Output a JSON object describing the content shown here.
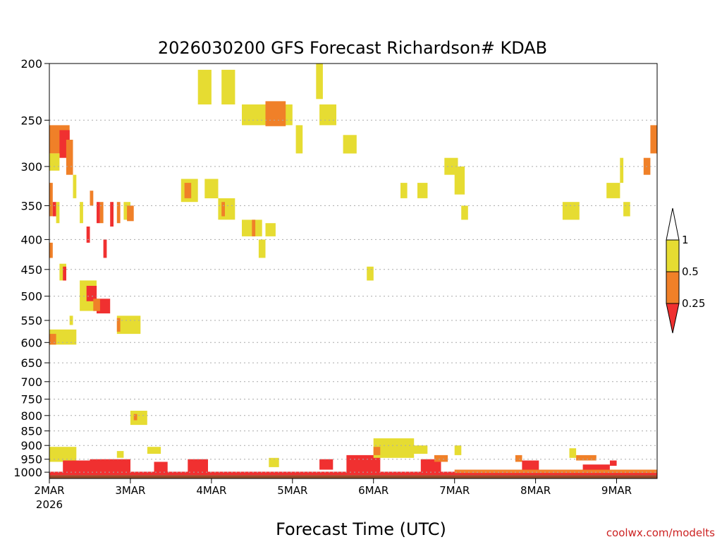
{
  "colors": {
    "band_0_0.25": "#f03030",
    "band_0.25_0.5": "#f08028",
    "band_0.5_1": "#e6dc32",
    "ground": "#9a4a28",
    "grid": "#aaaaaa",
    "axis": "#000000",
    "credit": "#cc2222"
  },
  "credit": "coolwx.com/modelts",
  "chart_data": {
    "type": "heatmap",
    "title": "2026030200 GFS Forecast Richardson# KDAB",
    "xlabel": "Forecast Time (UTC)",
    "ylabel": "",
    "y_scale": "log-pressure",
    "y_inverted": true,
    "ylim": [
      1025,
      200
    ],
    "xlim_days": [
      "2026-03-02T00Z",
      "2026-03-09T12Z"
    ],
    "grid": "dotted horizontal at pressure levels",
    "y_ticks": [
      {
        "value": 200,
        "label": "200"
      },
      {
        "value": 250,
        "label": "250"
      },
      {
        "value": 300,
        "label": "300"
      },
      {
        "value": 350,
        "label": "350"
      },
      {
        "value": 400,
        "label": "400"
      },
      {
        "value": 450,
        "label": "450"
      },
      {
        "value": 500,
        "label": "500"
      },
      {
        "value": 550,
        "label": "550"
      },
      {
        "value": 600,
        "label": "600"
      },
      {
        "value": 650,
        "label": "650"
      },
      {
        "value": 700,
        "label": "700"
      },
      {
        "value": 750,
        "label": "750"
      },
      {
        "value": 800,
        "label": "800"
      },
      {
        "value": 850,
        "label": "850"
      },
      {
        "value": 900,
        "label": "900"
      },
      {
        "value": 950,
        "label": "950"
      },
      {
        "value": 1000,
        "label": "1000"
      }
    ],
    "x_ticks": [
      {
        "value": "2026-03-02",
        "label": "2MAR",
        "sublabel": "2026"
      },
      {
        "value": "2026-03-03",
        "label": "3MAR"
      },
      {
        "value": "2026-03-04",
        "label": "4MAR"
      },
      {
        "value": "2026-03-05",
        "label": "5MAR"
      },
      {
        "value": "2026-03-06",
        "label": "6MAR"
      },
      {
        "value": "2026-03-07",
        "label": "7MAR"
      },
      {
        "value": "2026-03-08",
        "label": "8MAR"
      },
      {
        "value": "2026-03-09",
        "label": "9MAR"
      }
    ],
    "legend": {
      "placement": "right",
      "bands": [
        {
          "range": "< 0.25",
          "color": "#f03030"
        },
        {
          "range": "0.25 - 0.5",
          "color": "#f08028"
        },
        {
          "range": "0.5 - 1",
          "color": "#e6dc32"
        },
        {
          "range": "> 1",
          "color": "#ffffff"
        }
      ],
      "labels": [
        "1",
        "0.5",
        "0.25"
      ]
    },
    "cells": [
      {
        "t0": "2026-03-02T00Z",
        "t1": "2026-03-02T06Z",
        "p0": 255,
        "p1": 285,
        "band": "0.25-0.5"
      },
      {
        "t0": "2026-03-02T03Z",
        "t1": "2026-03-02T06Z",
        "p0": 260,
        "p1": 290,
        "band": "<0.25"
      },
      {
        "t0": "2026-03-02T00Z",
        "t1": "2026-03-02T03Z",
        "p0": 285,
        "p1": 305,
        "band": "0.5-1"
      },
      {
        "t0": "2026-03-02T05Z",
        "t1": "2026-03-02T07Z",
        "p0": 270,
        "p1": 310,
        "band": "0.25-0.5"
      },
      {
        "t0": "2026-03-02T00Z",
        "t1": "2026-03-02T01Z",
        "p0": 320,
        "p1": 365,
        "band": "0.25-0.5"
      },
      {
        "t0": "2026-03-02T01Z",
        "t1": "2026-03-02T02Z",
        "p0": 345,
        "p1": 365,
        "band": "<0.25"
      },
      {
        "t0": "2026-03-02T02Z",
        "t1": "2026-03-02T03Z",
        "p0": 345,
        "p1": 375,
        "band": "0.5-1"
      },
      {
        "t0": "2026-03-02T07Z",
        "t1": "2026-03-02T08Z",
        "p0": 310,
        "p1": 340,
        "band": "0.5-1"
      },
      {
        "t0": "2026-03-02T09Z",
        "t1": "2026-03-02T10Z",
        "p0": 345,
        "p1": 375,
        "band": "0.5-1"
      },
      {
        "t0": "2026-03-02T12Z",
        "t1": "2026-03-02T13Z",
        "p0": 330,
        "p1": 350,
        "band": "0.25-0.5"
      },
      {
        "t0": "2026-03-02T14Z",
        "t1": "2026-03-02T15Z",
        "p0": 345,
        "p1": 375,
        "band": "<0.25"
      },
      {
        "t0": "2026-03-02T15Z",
        "t1": "2026-03-02T16Z",
        "p0": 345,
        "p1": 375,
        "band": "0.25-0.5"
      },
      {
        "t0": "2026-03-02T18Z",
        "t1": "2026-03-02T19Z",
        "p0": 345,
        "p1": 380,
        "band": "<0.25"
      },
      {
        "t0": "2026-03-02T20Z",
        "t1": "2026-03-02T21Z",
        "p0": 345,
        "p1": 375,
        "band": "0.25-0.5"
      },
      {
        "t0": "2026-03-02T22Z",
        "t1": "2026-03-02T24Z",
        "p0": 345,
        "p1": 370,
        "band": "0.5-1"
      },
      {
        "t0": "2026-03-02T23Z",
        "t1": "2026-03-03T01Z",
        "p0": 350,
        "p1": 372,
        "band": "0.25-0.5"
      },
      {
        "t0": "2026-03-02T11Z",
        "t1": "2026-03-02T12Z",
        "p0": 380,
        "p1": 405,
        "band": "<0.25"
      },
      {
        "t0": "2026-03-02T16Z",
        "t1": "2026-03-02T17Z",
        "p0": 400,
        "p1": 430,
        "band": "<0.25"
      },
      {
        "t0": "2026-03-02T00Z",
        "t1": "2026-03-02T01Z",
        "p0": 405,
        "p1": 430,
        "band": "0.25-0.5"
      },
      {
        "t0": "2026-03-02T03Z",
        "t1": "2026-03-02T05Z",
        "p0": 440,
        "p1": 470,
        "band": "0.5-1"
      },
      {
        "t0": "2026-03-02T04Z",
        "t1": "2026-03-02T05Z",
        "p0": 445,
        "p1": 470,
        "band": "<0.25"
      },
      {
        "t0": "2026-03-02T09Z",
        "t1": "2026-03-02T14Z",
        "p0": 470,
        "p1": 530,
        "band": "0.5-1"
      },
      {
        "t0": "2026-03-02T11Z",
        "t1": "2026-03-02T14Z",
        "p0": 480,
        "p1": 510,
        "band": "<0.25"
      },
      {
        "t0": "2026-03-02T14Z",
        "t1": "2026-03-02T18Z",
        "p0": 505,
        "p1": 535,
        "band": "<0.25"
      },
      {
        "t0": "2026-03-02T13Z",
        "t1": "2026-03-02T15Z",
        "p0": 505,
        "p1": 530,
        "band": "0.25-0.5"
      },
      {
        "t0": "2026-03-02T20Z",
        "t1": "2026-03-03T03Z",
        "p0": 540,
        "p1": 580,
        "band": "0.5-1"
      },
      {
        "t0": "2026-03-02T20Z",
        "t1": "2026-03-02T21Z",
        "p0": 545,
        "p1": 575,
        "band": "0.25-0.5"
      },
      {
        "t0": "2026-03-02T00Z",
        "t1": "2026-03-02T08Z",
        "p0": 570,
        "p1": 605,
        "band": "0.5-1"
      },
      {
        "t0": "2026-03-02T00Z",
        "t1": "2026-03-02T02Z",
        "p0": 580,
        "p1": 605,
        "band": "0.25-0.5"
      },
      {
        "t0": "2026-03-02T06Z",
        "t1": "2026-03-02T07Z",
        "p0": 540,
        "p1": 560,
        "band": "0.5-1"
      },
      {
        "t0": "2026-03-03T00Z",
        "t1": "2026-03-03T05Z",
        "p0": 785,
        "p1": 830,
        "band": "0.5-1"
      },
      {
        "t0": "2026-03-03T01Z",
        "t1": "2026-03-03T02Z",
        "p0": 795,
        "p1": 815,
        "band": "0.25-0.5"
      },
      {
        "t0": "2026-03-03T20Z",
        "t1": "2026-03-03T24Z",
        "p0": 205,
        "p1": 235,
        "band": "0.5-1"
      },
      {
        "t0": "2026-03-04T03Z",
        "t1": "2026-03-04T07Z",
        "p0": 205,
        "p1": 235,
        "band": "0.5-1"
      },
      {
        "t0": "2026-03-04T09Z",
        "t1": "2026-03-04T24Z",
        "p0": 235,
        "p1": 255,
        "band": "0.5-1"
      },
      {
        "t0": "2026-03-04T16Z",
        "t1": "2026-03-04T22Z",
        "p0": 232,
        "p1": 256,
        "band": "0.25-0.5"
      },
      {
        "t0": "2026-03-05T01Z",
        "t1": "2026-03-05T03Z",
        "p0": 255,
        "p1": 285,
        "band": "0.5-1"
      },
      {
        "t0": "2026-03-05T07Z",
        "t1": "2026-03-05T09Z",
        "p0": 200,
        "p1": 230,
        "band": "0.5-1"
      },
      {
        "t0": "2026-03-05T08Z",
        "t1": "2026-03-05T13Z",
        "p0": 235,
        "p1": 255,
        "band": "0.5-1"
      },
      {
        "t0": "2026-03-05T15Z",
        "t1": "2026-03-05T19Z",
        "p0": 265,
        "p1": 285,
        "band": "0.5-1"
      },
      {
        "t0": "2026-03-03T15Z",
        "t1": "2026-03-03T20Z",
        "p0": 315,
        "p1": 345,
        "band": "0.5-1"
      },
      {
        "t0": "2026-03-03T16Z",
        "t1": "2026-03-03T18Z",
        "p0": 320,
        "p1": 340,
        "band": "0.25-0.5"
      },
      {
        "t0": "2026-03-03T22Z",
        "t1": "2026-03-04T02Z",
        "p0": 315,
        "p1": 340,
        "band": "0.5-1"
      },
      {
        "t0": "2026-03-04T02Z",
        "t1": "2026-03-04T07Z",
        "p0": 340,
        "p1": 370,
        "band": "0.5-1"
      },
      {
        "t0": "2026-03-04T03Z",
        "t1": "2026-03-04T04Z",
        "p0": 345,
        "p1": 365,
        "band": "0.25-0.5"
      },
      {
        "t0": "2026-03-04T09Z",
        "t1": "2026-03-04T15Z",
        "p0": 370,
        "p1": 395,
        "band": "0.5-1"
      },
      {
        "t0": "2026-03-04T12Z",
        "t1": "2026-03-04T13Z",
        "p0": 370,
        "p1": 395,
        "band": "0.25-0.5"
      },
      {
        "t0": "2026-03-04T16Z",
        "t1": "2026-03-04T19Z",
        "p0": 375,
        "p1": 395,
        "band": "0.5-1"
      },
      {
        "t0": "2026-03-04T14Z",
        "t1": "2026-03-04T16Z",
        "p0": 400,
        "p1": 430,
        "band": "0.5-1"
      },
      {
        "t0": "2026-03-05T22Z",
        "t1": "2026-03-05T24Z",
        "p0": 445,
        "p1": 470,
        "band": "0.5-1"
      },
      {
        "t0": "2026-03-06T08Z",
        "t1": "2026-03-06T10Z",
        "p0": 320,
        "p1": 340,
        "band": "0.5-1"
      },
      {
        "t0": "2026-03-06T13Z",
        "t1": "2026-03-06T16Z",
        "p0": 320,
        "p1": 340,
        "band": "0.5-1"
      },
      {
        "t0": "2026-03-06T21Z",
        "t1": "2026-03-07T01Z",
        "p0": 290,
        "p1": 310,
        "band": "0.5-1"
      },
      {
        "t0": "2026-03-06T24Z",
        "t1": "2026-03-07T03Z",
        "p0": 300,
        "p1": 335,
        "band": "0.5-1"
      },
      {
        "t0": "2026-03-07T02Z",
        "t1": "2026-03-07T04Z",
        "p0": 350,
        "p1": 370,
        "band": "0.5-1"
      },
      {
        "t0": "2026-03-08T08Z",
        "t1": "2026-03-08T13Z",
        "p0": 345,
        "p1": 370,
        "band": "0.5-1"
      },
      {
        "t0": "2026-03-08T21Z",
        "t1": "2026-03-09T01Z",
        "p0": 320,
        "p1": 340,
        "band": "0.5-1"
      },
      {
        "t0": "2026-03-09T01Z",
        "t1": "2026-03-09T02Z",
        "p0": 290,
        "p1": 320,
        "band": "0.5-1"
      },
      {
        "t0": "2026-03-09T02Z",
        "t1": "2026-03-09T04Z",
        "p0": 345,
        "p1": 365,
        "band": "0.5-1"
      },
      {
        "t0": "2026-03-09T08Z",
        "t1": "2026-03-09T10Z",
        "p0": 290,
        "p1": 310,
        "band": "0.25-0.5"
      },
      {
        "t0": "2026-03-09T10Z",
        "t1": "2026-03-09T12Z",
        "p0": 255,
        "p1": 285,
        "band": "0.25-0.5"
      },
      {
        "t0": "2026-03-02T00Z",
        "t1": "2026-03-02T08Z",
        "p0": 905,
        "p1": 960,
        "band": "0.5-1"
      },
      {
        "t0": "2026-03-02T04Z",
        "t1": "2026-03-02T14Z",
        "p0": 955,
        "p1": 1000,
        "band": "<0.25"
      },
      {
        "t0": "2026-03-02T12Z",
        "t1": "2026-03-02T24Z",
        "p0": 950,
        "p1": 1008,
        "band": "<0.25"
      },
      {
        "t0": "2026-03-02T20Z",
        "t1": "2026-03-02T22Z",
        "p0": 920,
        "p1": 945,
        "band": "0.5-1"
      },
      {
        "t0": "2026-03-03T05Z",
        "t1": "2026-03-03T09Z",
        "p0": 905,
        "p1": 930,
        "band": "0.5-1"
      },
      {
        "t0": "2026-03-03T07Z",
        "t1": "2026-03-03T11Z",
        "p0": 960,
        "p1": 1005,
        "band": "<0.25"
      },
      {
        "t0": "2026-03-03T17Z",
        "t1": "2026-03-03T23Z",
        "p0": 950,
        "p1": 1003,
        "band": "<0.25"
      },
      {
        "t0": "2026-03-04T17Z",
        "t1": "2026-03-04T20Z",
        "p0": 945,
        "p1": 980,
        "band": "0.5-1"
      },
      {
        "t0": "2026-03-05T08Z",
        "t1": "2026-03-05T12Z",
        "p0": 950,
        "p1": 990,
        "band": "<0.25"
      },
      {
        "t0": "2026-03-05T16Z",
        "t1": "2026-03-06T02Z",
        "p0": 935,
        "p1": 1005,
        "band": "<0.25"
      },
      {
        "t0": "2026-03-06T00Z",
        "t1": "2026-03-06T12Z",
        "p0": 875,
        "p1": 945,
        "band": "0.5-1"
      },
      {
        "t0": "2026-03-06T00Z",
        "t1": "2026-03-06T02Z",
        "p0": 905,
        "p1": 935,
        "band": "0.25-0.5"
      },
      {
        "t0": "2026-03-06T10Z",
        "t1": "2026-03-06T16Z",
        "p0": 900,
        "p1": 930,
        "band": "0.5-1"
      },
      {
        "t0": "2026-03-06T14Z",
        "t1": "2026-03-06T20Z",
        "p0": 950,
        "p1": 1000,
        "band": "<0.25"
      },
      {
        "t0": "2026-03-06T18Z",
        "t1": "2026-03-06T22Z",
        "p0": 935,
        "p1": 960,
        "band": "0.25-0.5"
      },
      {
        "t0": "2026-03-06T24Z",
        "t1": "2026-03-07T02Z",
        "p0": 900,
        "p1": 935,
        "band": "0.5-1"
      },
      {
        "t0": "2026-03-07T18Z",
        "t1": "2026-03-07T20Z",
        "p0": 935,
        "p1": 960,
        "band": "0.25-0.5"
      },
      {
        "t0": "2026-03-07T20Z",
        "t1": "2026-03-08T01Z",
        "p0": 955,
        "p1": 995,
        "band": "<0.25"
      },
      {
        "t0": "2026-03-08T10Z",
        "t1": "2026-03-08T12Z",
        "p0": 910,
        "p1": 945,
        "band": "0.5-1"
      },
      {
        "t0": "2026-03-08T12Z",
        "t1": "2026-03-08T18Z",
        "p0": 935,
        "p1": 955,
        "band": "0.25-0.5"
      },
      {
        "t0": "2026-03-08T14Z",
        "t1": "2026-03-08T22Z",
        "p0": 970,
        "p1": 1005,
        "band": "<0.25"
      },
      {
        "t0": "2026-03-08T22Z",
        "t1": "2026-03-09T00Z",
        "p0": 955,
        "p1": 975,
        "band": "<0.25"
      },
      {
        "t0": "2026-03-02T00Z",
        "t1": "2026-03-09T12Z",
        "p0": 998,
        "p1": 1012,
        "band": "<0.25"
      },
      {
        "t0": "2026-03-07T00Z",
        "t1": "2026-03-09T12Z",
        "p0": 990,
        "p1": 1003,
        "band": "0.25-0.5"
      }
    ],
    "ground_level_hPa": 1012
  }
}
